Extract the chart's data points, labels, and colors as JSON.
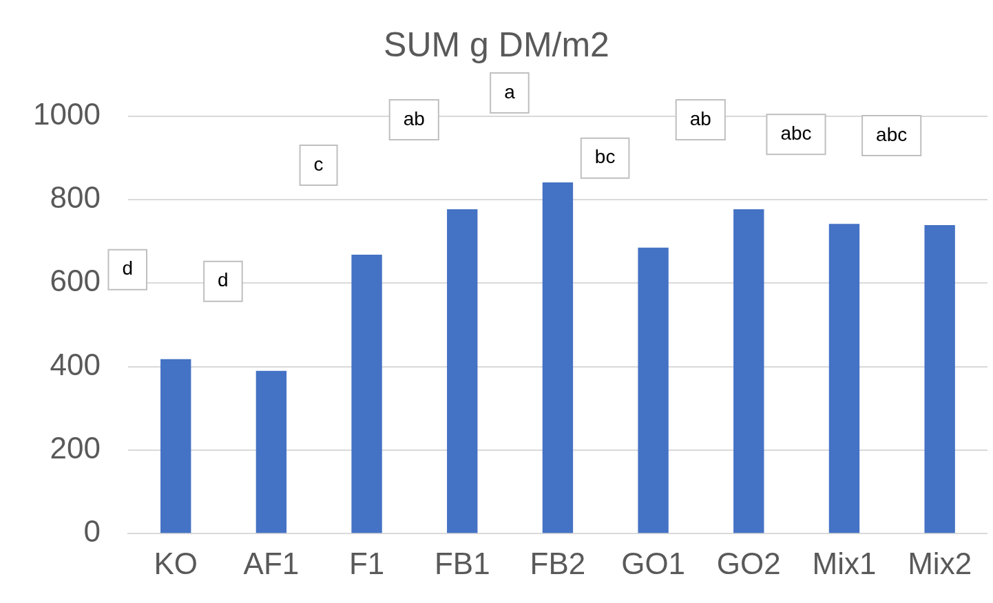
{
  "chart_data": {
    "type": "bar",
    "title": "SUM g DM/m2",
    "categories": [
      "KO",
      "AF1",
      "F1",
      "FB1",
      "FB2",
      "GO1",
      "GO2",
      "Mix1",
      "Mix2"
    ],
    "values": [
      418,
      390,
      668,
      777,
      841,
      685,
      777,
      742,
      739
    ],
    "color": "#4472c4",
    "ylim": [
      0,
      1100
    ],
    "yticks": [
      0,
      200,
      400,
      600,
      800,
      1000
    ],
    "grid": "y",
    "legend": false,
    "annotations": [
      "d",
      "d",
      "c",
      "ab",
      "a",
      "bc",
      "ab",
      "abc",
      "abc"
    ]
  }
}
